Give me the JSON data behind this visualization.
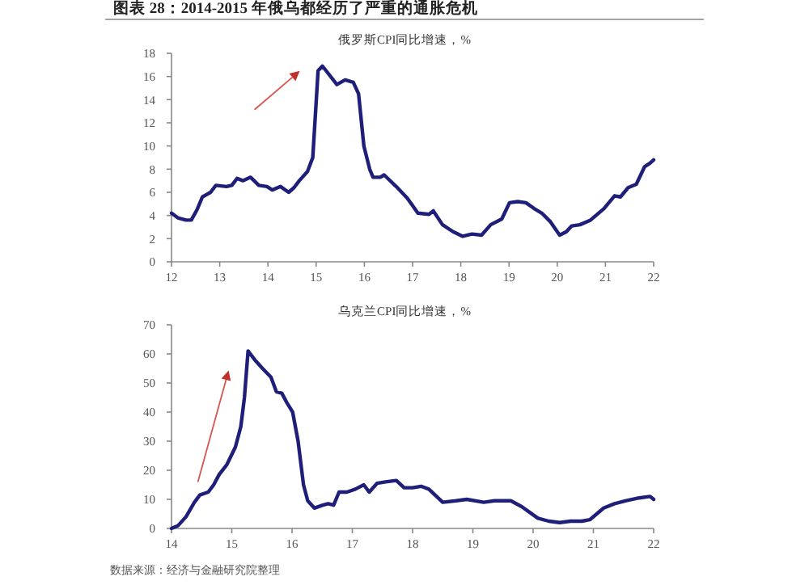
{
  "chart_data": [
    {
      "type": "line",
      "title": "图表 28：2014-2015 年俄乌都经历了严重的通胀危机",
      "subtitle": "俄罗斯CPI同比增速，%",
      "xlim": [
        12,
        22
      ],
      "xticks": [
        12,
        13,
        14,
        15,
        16,
        17,
        18,
        19,
        20,
        21,
        22
      ],
      "ylim": [
        0,
        18
      ],
      "yticks": [
        0,
        2,
        4,
        6,
        8,
        10,
        12,
        14,
        16,
        18
      ],
      "series": [
        {
          "color": "#1f1f7a",
          "x": [
            12.0,
            12.13,
            12.3,
            12.41,
            12.53,
            12.64,
            12.81,
            12.92,
            13.14,
            13.25,
            13.36,
            13.48,
            13.64,
            13.81,
            13.98,
            14.09,
            14.26,
            14.43,
            14.54,
            14.65,
            14.82,
            14.93,
            15.04,
            15.13,
            15.43,
            15.6,
            15.77,
            15.88,
            15.99,
            16.11,
            16.18,
            16.33,
            16.41,
            16.66,
            16.89,
            17.11,
            17.34,
            17.43,
            17.62,
            17.84,
            18.04,
            18.23,
            18.43,
            18.62,
            18.85,
            19.01,
            19.18,
            19.35,
            19.52,
            19.68,
            19.85,
            20.05,
            20.19,
            20.3,
            20.47,
            20.69,
            20.97,
            21.19,
            21.31,
            21.47,
            21.64,
            21.81,
            21.92,
            22.0
          ],
          "values": [
            4.2,
            3.8,
            3.6,
            3.6,
            4.5,
            5.6,
            6.0,
            6.6,
            6.5,
            6.6,
            7.2,
            7.0,
            7.3,
            6.6,
            6.5,
            6.2,
            6.5,
            6.0,
            6.4,
            7.0,
            7.8,
            9.0,
            16.5,
            16.9,
            15.3,
            15.7,
            15.5,
            14.5,
            10.0,
            8.0,
            7.3,
            7.3,
            7.5,
            6.5,
            5.5,
            4.2,
            4.1,
            4.4,
            3.2,
            2.6,
            2.2,
            2.4,
            2.3,
            3.2,
            3.7,
            5.1,
            5.2,
            5.1,
            4.6,
            4.2,
            3.5,
            2.3,
            2.6,
            3.1,
            3.2,
            3.6,
            4.6,
            5.7,
            5.6,
            6.4,
            6.7,
            8.2,
            8.5,
            8.8
          ]
        }
      ]
    },
    {
      "type": "line",
      "title": "乌克兰CPI同比增速，%",
      "xlim": [
        14,
        22
      ],
      "xticks": [
        14,
        15,
        16,
        17,
        18,
        19,
        20,
        21,
        22
      ],
      "ylim": [
        0,
        70
      ],
      "yticks": [
        0,
        10,
        20,
        30,
        40,
        50,
        60,
        70
      ],
      "annotations": [
        "数据来源：经济与金融研究院整理"
      ],
      "series": [
        {
          "color": "#1f1f7a",
          "x": [
            14.0,
            14.11,
            14.24,
            14.38,
            14.47,
            14.61,
            14.7,
            14.79,
            14.92,
            15.06,
            15.15,
            15.21,
            15.27,
            15.38,
            15.51,
            15.65,
            15.74,
            15.83,
            15.92,
            16.01,
            16.1,
            16.19,
            16.26,
            16.37,
            16.51,
            16.6,
            16.69,
            16.78,
            16.91,
            17.05,
            17.19,
            17.28,
            17.41,
            17.55,
            17.73,
            17.86,
            18.0,
            18.14,
            18.27,
            18.5,
            18.72,
            18.9,
            19.18,
            19.36,
            19.63,
            19.81,
            20.08,
            20.26,
            20.44,
            20.62,
            20.81,
            20.94,
            21.17,
            21.35,
            21.53,
            21.76,
            21.94,
            22.0
          ],
          "values": [
            0,
            1,
            4,
            9,
            11.5,
            12.5,
            15,
            18.5,
            22,
            28,
            35,
            45,
            61,
            58,
            55,
            52,
            47,
            46.5,
            43,
            40,
            30,
            15,
            9.5,
            7,
            8,
            8.5,
            8,
            12.5,
            12.5,
            13.5,
            15,
            12.5,
            15.5,
            16,
            16.5,
            14,
            14,
            14.5,
            13.5,
            9,
            9.5,
            10,
            9,
            9.5,
            9.5,
            7.5,
            3.5,
            2.5,
            2,
            2.5,
            2.5,
            3,
            7,
            8.5,
            9.5,
            10.5,
            11,
            10
          ]
        }
      ]
    }
  ]
}
